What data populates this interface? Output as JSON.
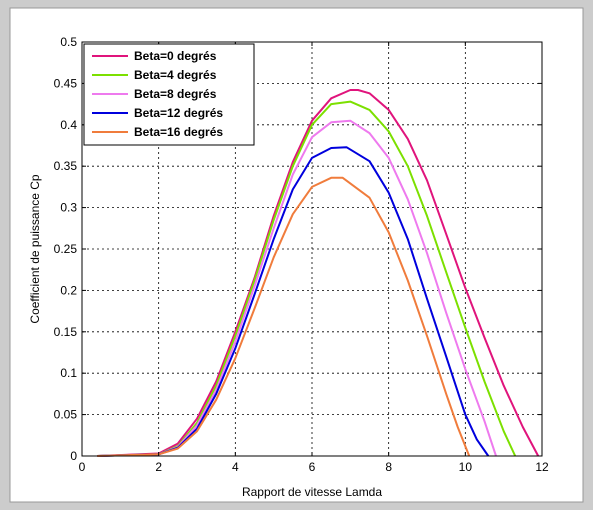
{
  "chart_data": {
    "type": "line",
    "xlabel": "Rapport de vitesse Lamda",
    "ylabel": "Coefficient de puissance Cp",
    "xlim": [
      0,
      12
    ],
    "ylim": [
      0,
      0.5
    ],
    "xticks": [
      0,
      2,
      4,
      6,
      8,
      10,
      12
    ],
    "xtick_labels": [
      "0",
      "2",
      "4",
      "6",
      "8",
      "10",
      "12"
    ],
    "yticks": [
      0,
      0.05,
      0.1,
      0.15,
      0.2,
      0.25,
      0.3,
      0.35,
      0.4,
      0.45,
      0.5
    ],
    "ytick_labels": [
      "0",
      "0.05",
      "0.1",
      "0.15",
      "0.2",
      "0.25",
      "0.3",
      "0.35",
      "0.4",
      "0.45",
      "0.5"
    ],
    "grid": true,
    "legend_position": "top-left",
    "series": [
      {
        "name": "Beta=0 degrés",
        "color": "#e0147c",
        "x": [
          0.4,
          2.0,
          2.5,
          3.0,
          3.5,
          4.0,
          4.5,
          5.0,
          5.5,
          6.0,
          6.5,
          7.0,
          7.2,
          7.5,
          8.0,
          8.5,
          9.0,
          9.5,
          10.0,
          10.5,
          11.0,
          11.5,
          11.9
        ],
        "y": [
          0,
          0.003,
          0.015,
          0.045,
          0.09,
          0.15,
          0.215,
          0.29,
          0.355,
          0.405,
          0.432,
          0.442,
          0.442,
          0.438,
          0.418,
          0.383,
          0.333,
          0.268,
          0.203,
          0.143,
          0.085,
          0.035,
          0
        ]
      },
      {
        "name": "Beta=4 degrés",
        "color": "#7ce000",
        "x": [
          0.4,
          2.0,
          2.5,
          3.0,
          3.5,
          4.0,
          4.5,
          5.0,
          5.5,
          6.0,
          6.5,
          7.0,
          7.5,
          8.0,
          8.5,
          9.0,
          9.5,
          10.0,
          10.5,
          11.0,
          11.3
        ],
        "y": [
          0,
          0.002,
          0.012,
          0.04,
          0.085,
          0.145,
          0.212,
          0.285,
          0.35,
          0.4,
          0.425,
          0.428,
          0.418,
          0.392,
          0.35,
          0.29,
          0.222,
          0.155,
          0.09,
          0.03,
          0
        ]
      },
      {
        "name": "Beta=8 degrés",
        "color": "#ee7aee",
        "x": [
          0.4,
          2.0,
          2.5,
          3.0,
          3.5,
          4.0,
          4.5,
          5.0,
          5.5,
          6.0,
          6.5,
          7.0,
          7.5,
          8.0,
          8.5,
          9.0,
          9.5,
          10.0,
          10.5,
          10.8
        ],
        "y": [
          0,
          0.002,
          0.011,
          0.037,
          0.08,
          0.138,
          0.205,
          0.275,
          0.34,
          0.385,
          0.403,
          0.405,
          0.39,
          0.36,
          0.31,
          0.245,
          0.173,
          0.105,
          0.042,
          0
        ]
      },
      {
        "name": "Beta=12 degrés",
        "color": "#0000dd",
        "x": [
          0.4,
          2.0,
          2.5,
          3.0,
          3.5,
          4.0,
          4.5,
          5.0,
          5.5,
          6.0,
          6.5,
          6.9,
          7.5,
          8.0,
          8.5,
          9.0,
          9.5,
          10.0,
          10.3,
          10.6
        ],
        "y": [
          0,
          0.002,
          0.01,
          0.033,
          0.075,
          0.13,
          0.195,
          0.262,
          0.322,
          0.36,
          0.372,
          0.373,
          0.356,
          0.318,
          0.262,
          0.19,
          0.12,
          0.05,
          0.02,
          0
        ]
      },
      {
        "name": "Beta=16 degrés",
        "color": "#f07c3c",
        "x": [
          0.4,
          2.0,
          2.5,
          3.0,
          3.5,
          4.0,
          4.5,
          5.0,
          5.5,
          6.0,
          6.5,
          6.8,
          7.5,
          8.0,
          8.5,
          9.0,
          9.5,
          9.8,
          10.1
        ],
        "y": [
          0,
          0.002,
          0.009,
          0.03,
          0.068,
          0.118,
          0.178,
          0.24,
          0.292,
          0.325,
          0.336,
          0.336,
          0.312,
          0.27,
          0.212,
          0.145,
          0.075,
          0.035,
          0
        ]
      }
    ]
  }
}
